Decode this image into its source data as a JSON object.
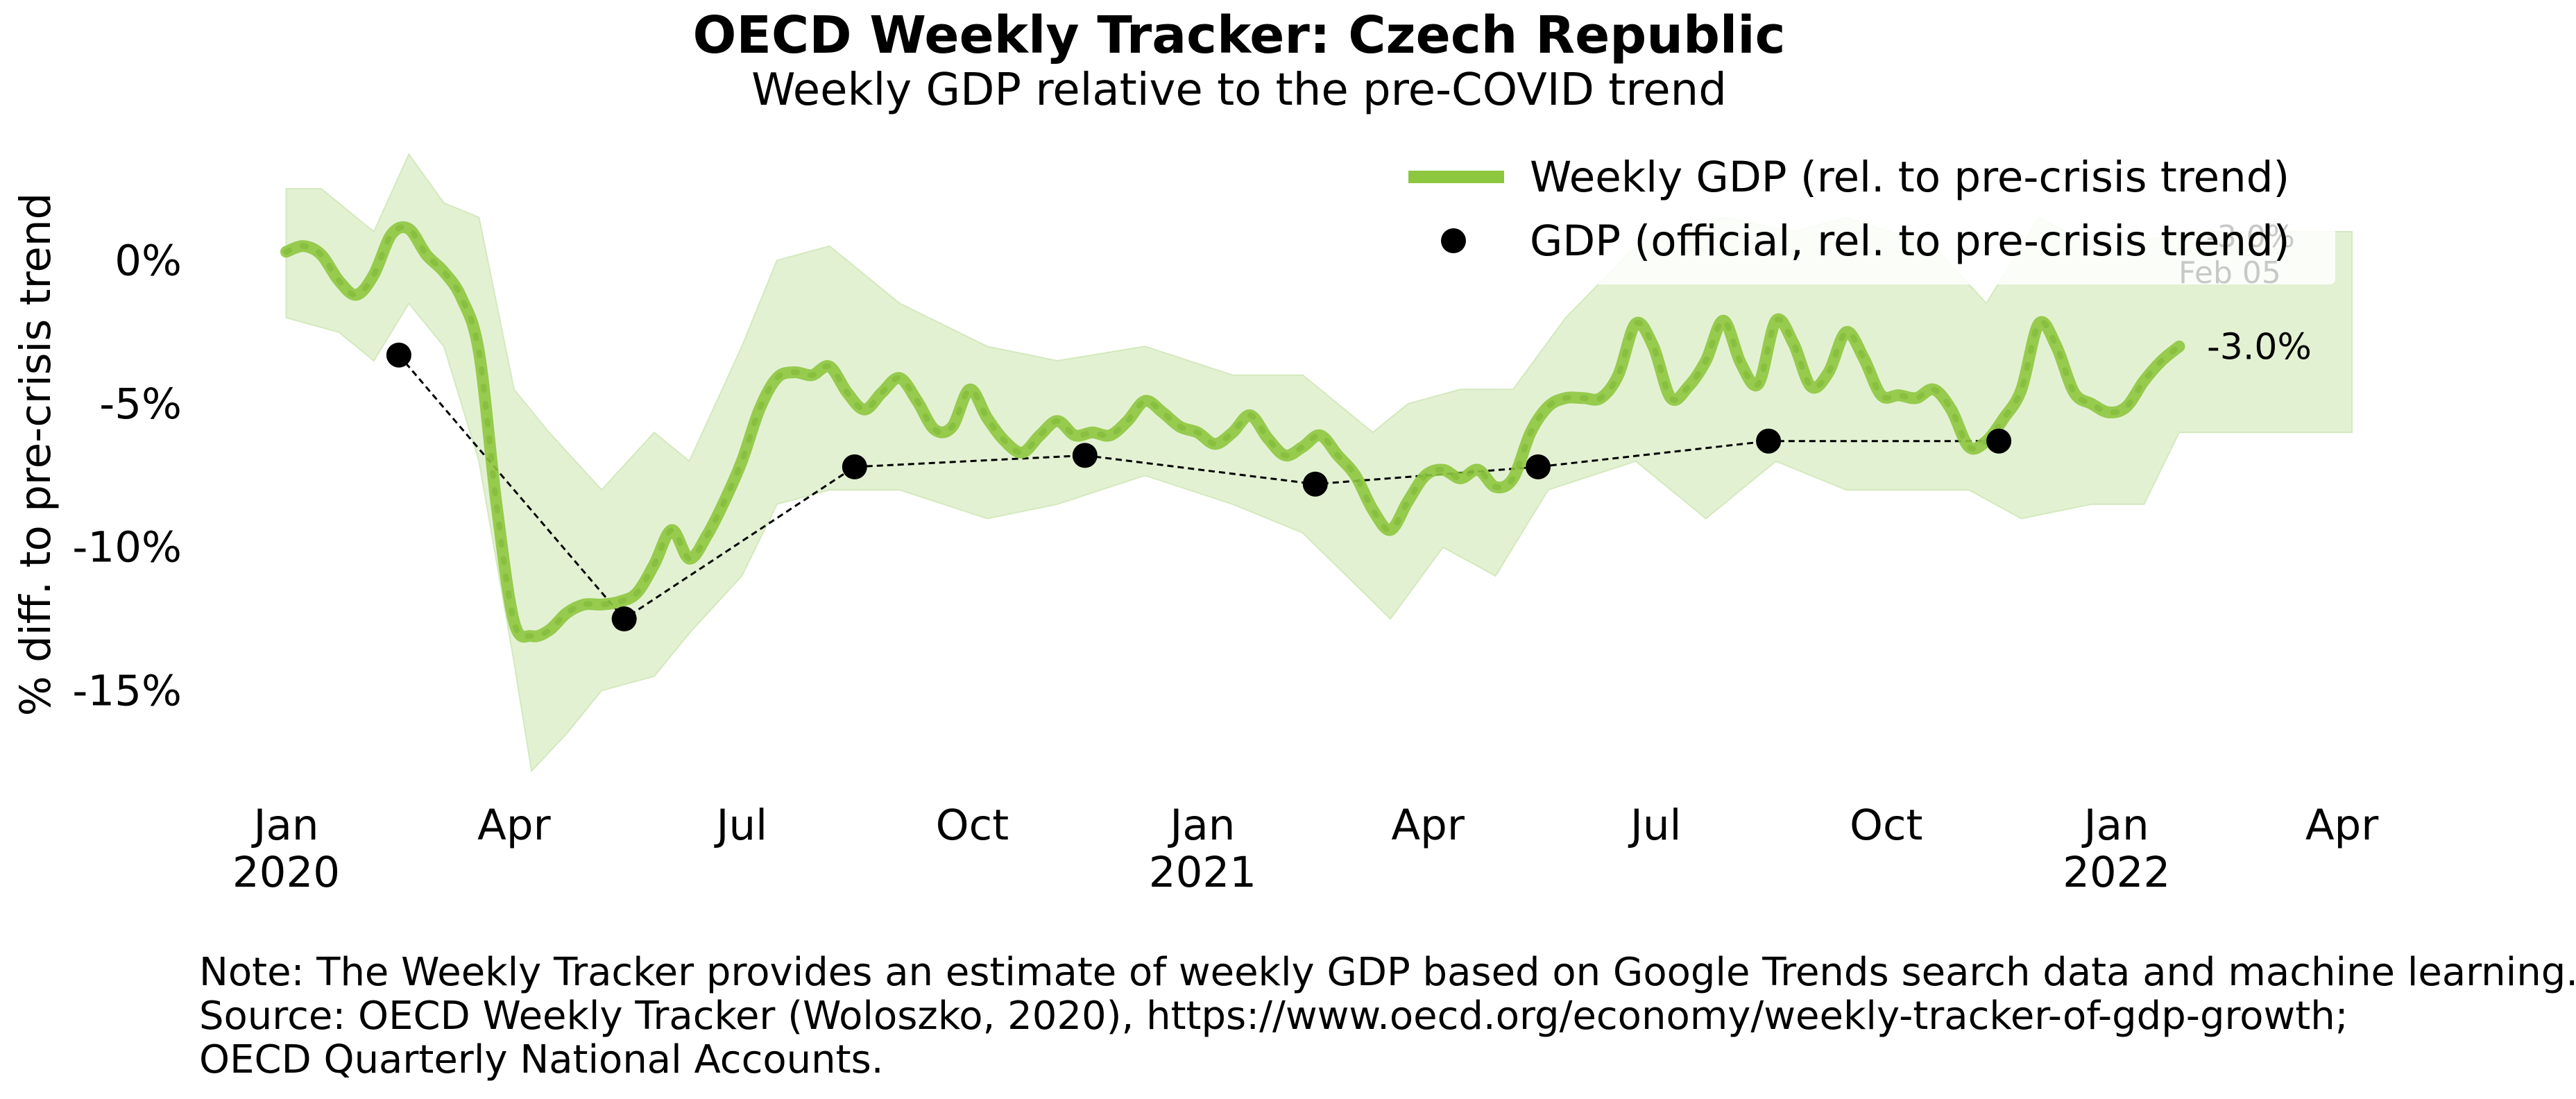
{
  "chart_data": {
    "type": "line",
    "title": "OECD Weekly Tracker: Czech Republic",
    "subtitle": "Weekly GDP relative to the pre-COVID trend",
    "ylabel": "% diff. to pre-crisis trend",
    "xlabel": "",
    "x_range": [
      "2019-12-23",
      "2022-04-05"
    ],
    "ylim": [
      -18.5,
      4
    ],
    "y_ticks": [
      {
        "value": 0,
        "label": "0%"
      },
      {
        "value": -5,
        "label": "-5%"
      },
      {
        "value": -10,
        "label": "-10%"
      },
      {
        "value": -15,
        "label": "-15%"
      }
    ],
    "x_ticks": [
      {
        "date": "2020-01-01",
        "label": "Jan",
        "sublabel": "2020"
      },
      {
        "date": "2020-04-01",
        "label": "Apr",
        "sublabel": ""
      },
      {
        "date": "2020-07-01",
        "label": "Jul",
        "sublabel": ""
      },
      {
        "date": "2020-10-01",
        "label": "Oct",
        "sublabel": ""
      },
      {
        "date": "2021-01-01",
        "label": "Jan",
        "sublabel": "2021"
      },
      {
        "date": "2021-04-01",
        "label": "Apr",
        "sublabel": ""
      },
      {
        "date": "2021-07-01",
        "label": "Jul",
        "sublabel": ""
      },
      {
        "date": "2021-10-01",
        "label": "Oct",
        "sublabel": ""
      },
      {
        "date": "2022-01-01",
        "label": "Jan",
        "sublabel": "2022"
      },
      {
        "date": "2022-04-01",
        "label": "Apr",
        "sublabel": ""
      }
    ],
    "legend": {
      "placement": "top-right"
    },
    "colors": {
      "weekly": "#8dc63f",
      "band": "#e3f1d3",
      "band_edge": "#d3e9bd",
      "official": "#000000"
    },
    "series": [
      {
        "name": "Weekly GDP (rel. to pre-crisis trend)",
        "style": "line",
        "end_label": "-3.0%",
        "points": [
          [
            "2020-01-01",
            0.3
          ],
          [
            "2020-01-08",
            0.5
          ],
          [
            "2020-01-15",
            0.2
          ],
          [
            "2020-01-22",
            -0.7
          ],
          [
            "2020-01-29",
            -1.2
          ],
          [
            "2020-02-05",
            -0.5
          ],
          [
            "2020-02-12",
            0.9
          ],
          [
            "2020-02-19",
            1.1
          ],
          [
            "2020-02-26",
            0.2
          ],
          [
            "2020-03-04",
            -0.4
          ],
          [
            "2020-03-11",
            -1.3
          ],
          [
            "2020-03-18",
            -3.2
          ],
          [
            "2020-03-25",
            -8.5
          ],
          [
            "2020-04-01",
            -12.6
          ],
          [
            "2020-04-08",
            -13.1
          ],
          [
            "2020-04-15",
            -12.9
          ],
          [
            "2020-04-22",
            -12.3
          ],
          [
            "2020-04-29",
            -12.0
          ],
          [
            "2020-05-06",
            -12.0
          ],
          [
            "2020-05-13",
            -11.9
          ],
          [
            "2020-05-20",
            -11.6
          ],
          [
            "2020-05-27",
            -10.6
          ],
          [
            "2020-06-03",
            -9.4
          ],
          [
            "2020-06-10",
            -10.4
          ],
          [
            "2020-06-17",
            -9.6
          ],
          [
            "2020-06-24",
            -8.4
          ],
          [
            "2020-07-01",
            -7.0
          ],
          [
            "2020-07-08",
            -5.2
          ],
          [
            "2020-07-15",
            -4.1
          ],
          [
            "2020-07-22",
            -3.9
          ],
          [
            "2020-07-29",
            -4.0
          ],
          [
            "2020-08-05",
            -3.7
          ],
          [
            "2020-08-12",
            -4.6
          ],
          [
            "2020-08-19",
            -5.2
          ],
          [
            "2020-08-26",
            -4.6
          ],
          [
            "2020-09-02",
            -4.1
          ],
          [
            "2020-09-09",
            -4.9
          ],
          [
            "2020-09-16",
            -5.9
          ],
          [
            "2020-09-23",
            -5.8
          ],
          [
            "2020-09-30",
            -4.5
          ],
          [
            "2020-10-07",
            -5.5
          ],
          [
            "2020-10-14",
            -6.3
          ],
          [
            "2020-10-21",
            -6.7
          ],
          [
            "2020-10-28",
            -6.1
          ],
          [
            "2020-11-04",
            -5.6
          ],
          [
            "2020-11-11",
            -6.1
          ],
          [
            "2020-11-18",
            -6.0
          ],
          [
            "2020-11-25",
            -6.1
          ],
          [
            "2020-12-02",
            -5.6
          ],
          [
            "2020-12-09",
            -4.9
          ],
          [
            "2020-12-16",
            -5.3
          ],
          [
            "2020-12-23",
            -5.8
          ],
          [
            "2020-12-30",
            -6.0
          ],
          [
            "2021-01-06",
            -6.4
          ],
          [
            "2021-01-13",
            -6.0
          ],
          [
            "2021-01-20",
            -5.4
          ],
          [
            "2021-01-27",
            -6.2
          ],
          [
            "2021-02-03",
            -6.8
          ],
          [
            "2021-02-10",
            -6.5
          ],
          [
            "2021-02-17",
            -6.1
          ],
          [
            "2021-02-24",
            -6.8
          ],
          [
            "2021-03-03",
            -7.5
          ],
          [
            "2021-03-10",
            -8.7
          ],
          [
            "2021-03-17",
            -9.4
          ],
          [
            "2021-03-24",
            -8.4
          ],
          [
            "2021-03-31",
            -7.5
          ],
          [
            "2021-04-07",
            -7.3
          ],
          [
            "2021-04-14",
            -7.6
          ],
          [
            "2021-04-21",
            -7.3
          ],
          [
            "2021-04-28",
            -7.9
          ],
          [
            "2021-05-05",
            -7.6
          ],
          [
            "2021-05-12",
            -6.0
          ],
          [
            "2021-05-19",
            -5.1
          ],
          [
            "2021-05-26",
            -4.8
          ],
          [
            "2021-06-02",
            -4.8
          ],
          [
            "2021-06-09",
            -4.8
          ],
          [
            "2021-06-16",
            -4.0
          ],
          [
            "2021-06-23",
            -2.2
          ],
          [
            "2021-06-30",
            -3.0
          ],
          [
            "2021-07-07",
            -4.8
          ],
          [
            "2021-07-14",
            -4.4
          ],
          [
            "2021-07-21",
            -3.5
          ],
          [
            "2021-07-28",
            -2.1
          ],
          [
            "2021-08-04",
            -3.6
          ],
          [
            "2021-08-11",
            -4.3
          ],
          [
            "2021-08-18",
            -2.1
          ],
          [
            "2021-08-25",
            -2.9
          ],
          [
            "2021-09-01",
            -4.4
          ],
          [
            "2021-09-08",
            -3.9
          ],
          [
            "2021-09-15",
            -2.5
          ],
          [
            "2021-09-22",
            -3.4
          ],
          [
            "2021-09-29",
            -4.7
          ],
          [
            "2021-10-06",
            -4.7
          ],
          [
            "2021-10-13",
            -4.8
          ],
          [
            "2021-10-20",
            -4.5
          ],
          [
            "2021-10-27",
            -5.2
          ],
          [
            "2021-11-03",
            -6.5
          ],
          [
            "2021-11-10",
            -6.3
          ],
          [
            "2021-11-17",
            -5.5
          ],
          [
            "2021-11-24",
            -4.5
          ],
          [
            "2021-12-01",
            -2.2
          ],
          [
            "2021-12-08",
            -3.0
          ],
          [
            "2021-12-15",
            -4.6
          ],
          [
            "2021-12-22",
            -5.0
          ],
          [
            "2021-12-29",
            -5.3
          ],
          [
            "2022-01-05",
            -5.1
          ],
          [
            "2022-01-12",
            -4.2
          ],
          [
            "2022-01-19",
            -3.5
          ],
          [
            "2022-01-26",
            -3.0
          ]
        ]
      },
      {
        "name": "GDP (official, rel. to pre-crisis trend)",
        "style": "markers-dashed",
        "points": [
          [
            "2020-02-15",
            -3.3
          ],
          [
            "2020-05-15",
            -12.5
          ],
          [
            "2020-08-15",
            -7.2
          ],
          [
            "2020-11-15",
            -6.8
          ],
          [
            "2021-02-15",
            -7.8
          ],
          [
            "2021-05-15",
            -7.2
          ],
          [
            "2021-08-15",
            -6.3
          ],
          [
            "2021-11-15",
            -6.3
          ]
        ]
      }
    ],
    "uncertainty_band": {
      "x_end": "2022-04-05",
      "upper": [
        [
          "2020-01-01",
          2.5
        ],
        [
          "2020-01-15",
          2.5
        ],
        [
          "2020-02-05",
          1.0
        ],
        [
          "2020-02-19",
          3.7
        ],
        [
          "2020-03-04",
          2.0
        ],
        [
          "2020-03-18",
          1.5
        ],
        [
          "2020-04-01",
          -4.5
        ],
        [
          "2020-04-15",
          -6.0
        ],
        [
          "2020-05-06",
          -8.0
        ],
        [
          "2020-05-27",
          -6.0
        ],
        [
          "2020-06-10",
          -7.0
        ],
        [
          "2020-07-01",
          -3.0
        ],
        [
          "2020-07-15",
          0.0
        ],
        [
          "2020-08-05",
          0.5
        ],
        [
          "2020-09-02",
          -1.5
        ],
        [
          "2020-10-07",
          -3.0
        ],
        [
          "2020-11-04",
          -3.5
        ],
        [
          "2020-12-09",
          -3.0
        ],
        [
          "2021-01-13",
          -4.0
        ],
        [
          "2021-02-10",
          -4.0
        ],
        [
          "2021-03-10",
          -6.0
        ],
        [
          "2021-03-24",
          -5.0
        ],
        [
          "2021-04-14",
          -4.5
        ],
        [
          "2021-05-05",
          -4.5
        ],
        [
          "2021-05-26",
          -2.0
        ],
        [
          "2021-06-23",
          0.5
        ],
        [
          "2021-07-28",
          1.5
        ],
        [
          "2021-08-25",
          1.0
        ],
        [
          "2021-09-15",
          1.5
        ],
        [
          "2021-10-20",
          0.5
        ],
        [
          "2021-11-10",
          -1.5
        ],
        [
          "2021-12-01",
          1.5
        ],
        [
          "2021-12-22",
          0.5
        ],
        [
          "2022-01-19",
          0.8
        ],
        [
          "2022-01-26",
          1.0
        ],
        [
          "2022-04-05",
          1.0
        ]
      ],
      "lower": [
        [
          "2020-01-01",
          -2.0
        ],
        [
          "2020-01-22",
          -2.5
        ],
        [
          "2020-02-05",
          -3.5
        ],
        [
          "2020-02-19",
          -1.5
        ],
        [
          "2020-03-04",
          -3.0
        ],
        [
          "2020-03-18",
          -7.0
        ],
        [
          "2020-04-01",
          -14.0
        ],
        [
          "2020-04-08",
          -17.8
        ],
        [
          "2020-04-22",
          -16.5
        ],
        [
          "2020-05-06",
          -15.0
        ],
        [
          "2020-05-27",
          -14.5
        ],
        [
          "2020-06-10",
          -13.0
        ],
        [
          "2020-07-01",
          -11.0
        ],
        [
          "2020-07-15",
          -8.5
        ],
        [
          "2020-08-05",
          -8.0
        ],
        [
          "2020-09-02",
          -8.0
        ],
        [
          "2020-10-07",
          -9.0
        ],
        [
          "2020-11-04",
          -8.5
        ],
        [
          "2020-12-09",
          -7.5
        ],
        [
          "2021-01-13",
          -8.5
        ],
        [
          "2021-02-10",
          -9.5
        ],
        [
          "2021-03-17",
          -12.5
        ],
        [
          "2021-04-07",
          -10.0
        ],
        [
          "2021-04-28",
          -11.0
        ],
        [
          "2021-05-19",
          -8.0
        ],
        [
          "2021-06-23",
          -7.0
        ],
        [
          "2021-07-21",
          -9.0
        ],
        [
          "2021-08-18",
          -7.0
        ],
        [
          "2021-09-15",
          -8.0
        ],
        [
          "2021-10-20",
          -8.0
        ],
        [
          "2021-11-03",
          -8.0
        ],
        [
          "2021-11-24",
          -9.0
        ],
        [
          "2021-12-22",
          -8.5
        ],
        [
          "2022-01-12",
          -8.5
        ],
        [
          "2022-01-26",
          -6.0
        ],
        [
          "2022-04-05",
          -6.0
        ]
      ]
    },
    "ghost_label": {
      "date": "2022-01-26",
      "line1": "-3.0%",
      "line2": "Feb 05"
    }
  },
  "note": {
    "line1": "Note: The Weekly Tracker provides an estimate of weekly GDP based on Google Trends search data and machine learning.",
    "line2": "Source: OECD Weekly Tracker (Woloszko, 2020), https://www.oecd.org/economy/weekly-tracker-of-gdp-growth;",
    "line3": "OECD Quarterly National Accounts."
  }
}
